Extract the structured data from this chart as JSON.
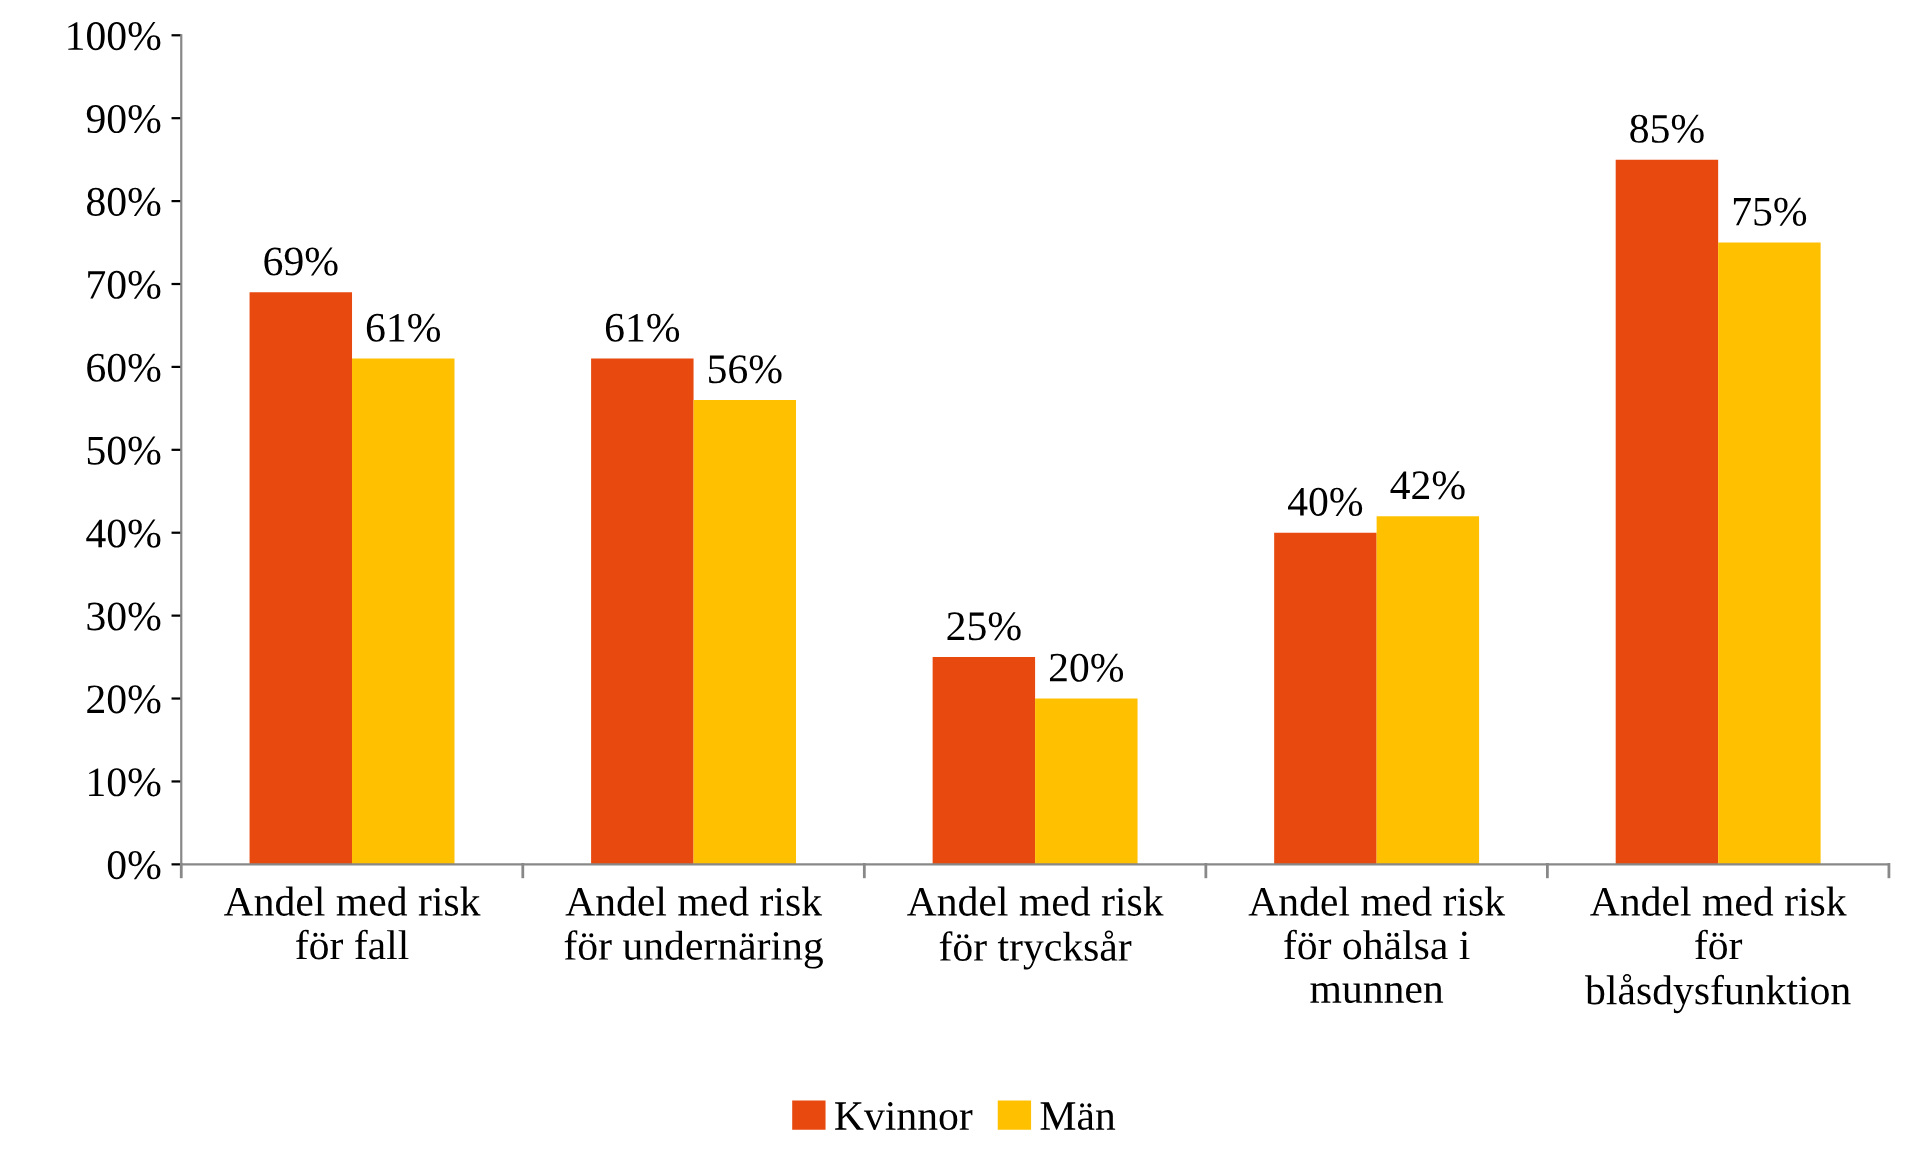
{
  "chart_data": {
    "type": "bar",
    "categories": [
      "Andel med risk\nför fall",
      "Andel med risk\nför undernäring",
      "Andel med risk\nför trycksår",
      "Andel med risk\nför ohälsa i\nmunnen",
      "Andel med risk\nför\nblåsdysfunktion"
    ],
    "series": [
      {
        "name": "Kvinnor",
        "color": "#e8490f",
        "values": [
          69,
          61,
          25,
          40,
          85
        ],
        "value_labels": [
          "69%",
          "61%",
          "25%",
          "40%",
          "85%"
        ]
      },
      {
        "name": "Män",
        "color": "#ffc000",
        "values": [
          61,
          56,
          20,
          42,
          75
        ],
        "value_labels": [
          "61%",
          "56%",
          "20%",
          "42%",
          "75%"
        ]
      }
    ],
    "ylim": [
      0,
      100
    ],
    "yticks": [
      {
        "value": 0,
        "label": "0%"
      },
      {
        "value": 10,
        "label": "10%"
      },
      {
        "value": 20,
        "label": "20%"
      },
      {
        "value": 30,
        "label": "30%"
      },
      {
        "value": 40,
        "label": "40%"
      },
      {
        "value": 50,
        "label": "50%"
      },
      {
        "value": 60,
        "label": "60%"
      },
      {
        "value": 70,
        "label": "70%"
      },
      {
        "value": 80,
        "label": "80%"
      },
      {
        "value": 90,
        "label": "90%"
      },
      {
        "value": 100,
        "label": "100%"
      }
    ],
    "grid": false,
    "legend": "bottom"
  }
}
